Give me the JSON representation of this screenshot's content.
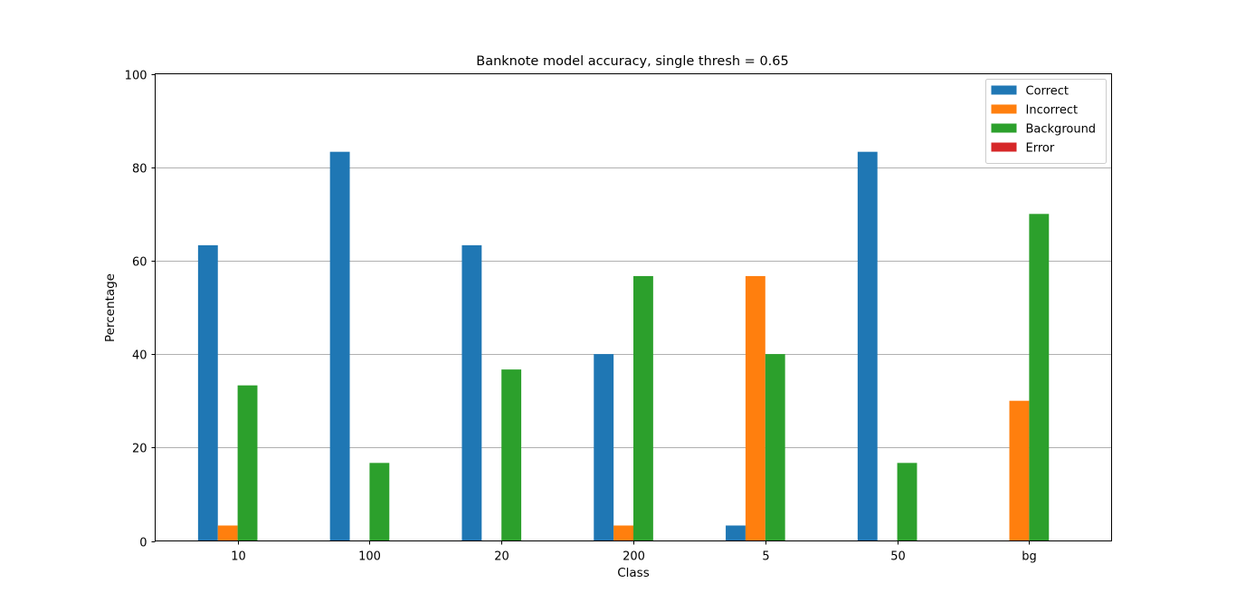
{
  "chart_data": {
    "type": "bar",
    "title": "Banknote model accuracy, single thresh = 0.65",
    "xlabel": "Class",
    "ylabel": "Percentage",
    "ylim": [
      0,
      100
    ],
    "yticks": [
      0,
      20,
      40,
      60,
      80,
      100
    ],
    "grid": "horizontal",
    "legend_position": "top-right",
    "categories": [
      "10",
      "100",
      "20",
      "200",
      "5",
      "50",
      "bg"
    ],
    "series": [
      {
        "name": "Correct",
        "color": "#1f77b4",
        "values": [
          63.3,
          83.3,
          63.3,
          40.0,
          3.3,
          83.3,
          0
        ]
      },
      {
        "name": "Incorrect",
        "color": "#ff7f0e",
        "values": [
          3.3,
          0,
          0,
          3.3,
          56.7,
          0,
          30.0
        ]
      },
      {
        "name": "Background",
        "color": "#2ca02c",
        "values": [
          33.3,
          16.7,
          36.7,
          56.7,
          40.0,
          16.7,
          70.0
        ]
      },
      {
        "name": "Error",
        "color": "#d62728",
        "values": [
          0,
          0,
          0,
          0,
          0,
          0,
          0
        ]
      }
    ]
  }
}
